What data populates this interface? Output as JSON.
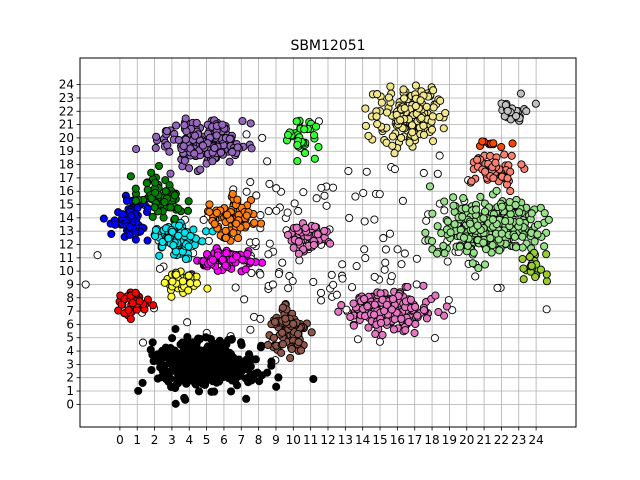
{
  "chart_data": {
    "type": "scatter",
    "title": "SBM12051",
    "xlabel": "",
    "ylabel": "",
    "xlim": [
      -2.3,
      26.3
    ],
    "ylim": [
      -1.7,
      26.0
    ],
    "x_ticks": [
      0,
      1,
      2,
      3,
      4,
      5,
      6,
      7,
      8,
      9,
      10,
      11,
      12,
      13,
      14,
      15,
      16,
      17,
      18,
      19,
      20,
      21,
      22,
      23,
      24
    ],
    "y_ticks": [
      0,
      1,
      2,
      3,
      4,
      5,
      6,
      7,
      8,
      9,
      10,
      11,
      12,
      13,
      14,
      15,
      16,
      17,
      18,
      19,
      20,
      21,
      22,
      23,
      24
    ],
    "grid": true,
    "legend": "none",
    "marker_edge_color": "#000000",
    "clusters": [
      {
        "color": "#000000",
        "center": [
          5.0,
          3.0
        ],
        "spread": [
          1.8,
          1.1
        ],
        "count": 520
      },
      {
        "color": "#0000ff",
        "center": [
          0.6,
          14.0
        ],
        "spread": [
          0.6,
          0.9
        ],
        "count": 70
      },
      {
        "color": "#008000",
        "center": [
          2.3,
          15.5
        ],
        "spread": [
          0.9,
          1.0
        ],
        "count": 80
      },
      {
        "color": "#9467bd",
        "center": [
          4.8,
          19.5
        ],
        "spread": [
          1.6,
          1.2
        ],
        "count": 190
      },
      {
        "color": "#00e5ee",
        "center": [
          3.3,
          12.3
        ],
        "spread": [
          0.9,
          0.8
        ],
        "count": 100
      },
      {
        "color": "#ff7f0e",
        "center": [
          6.5,
          13.8
        ],
        "spread": [
          0.8,
          0.9
        ],
        "count": 90
      },
      {
        "color": "#ff00ff",
        "center": [
          5.8,
          10.8
        ],
        "spread": [
          1.1,
          0.5
        ],
        "count": 80
      },
      {
        "color": "#ffff33",
        "center": [
          3.5,
          9.2
        ],
        "spread": [
          0.7,
          0.6
        ],
        "count": 45
      },
      {
        "color": "#ff0000",
        "center": [
          0.8,
          7.6
        ],
        "spread": [
          0.5,
          0.7
        ],
        "count": 45
      },
      {
        "color": "#8c564b",
        "center": [
          9.8,
          5.5
        ],
        "spread": [
          0.7,
          1.1
        ],
        "count": 90
      },
      {
        "color": "#e377c2",
        "center": [
          15.5,
          7.2
        ],
        "spread": [
          1.6,
          1.1
        ],
        "count": 190
      },
      {
        "color": "#e377c2",
        "center": [
          10.8,
          12.6
        ],
        "spread": [
          0.9,
          0.8
        ],
        "count": 55
      },
      {
        "color": "#33ff33",
        "center": [
          10.5,
          20.2
        ],
        "spread": [
          0.5,
          1.2
        ],
        "count": 35
      },
      {
        "color": "#f0e68c",
        "center": [
          16.5,
          21.8
        ],
        "spread": [
          1.3,
          1.4
        ],
        "count": 170
      },
      {
        "color": "#98df8a",
        "center": [
          21.3,
          13.3
        ],
        "spread": [
          1.9,
          1.3
        ],
        "count": 330
      },
      {
        "color": "#fa8072",
        "center": [
          21.8,
          17.5
        ],
        "spread": [
          1.0,
          0.8
        ],
        "count": 55
      },
      {
        "color": "#ff4500",
        "center": [
          21.5,
          19.5
        ],
        "spread": [
          0.7,
          0.2
        ],
        "count": 10
      },
      {
        "color": "#c0c0c0",
        "center": [
          22.7,
          21.8
        ],
        "spread": [
          0.7,
          0.8
        ],
        "count": 25
      },
      {
        "color": "#9acd32",
        "center": [
          23.9,
          10.3
        ],
        "spread": [
          0.5,
          0.7
        ],
        "count": 20
      },
      {
        "color": "#ffffff",
        "center": [
          12.0,
          12.0
        ],
        "spread": [
          6.5,
          5.5
        ],
        "count": 170
      }
    ]
  }
}
